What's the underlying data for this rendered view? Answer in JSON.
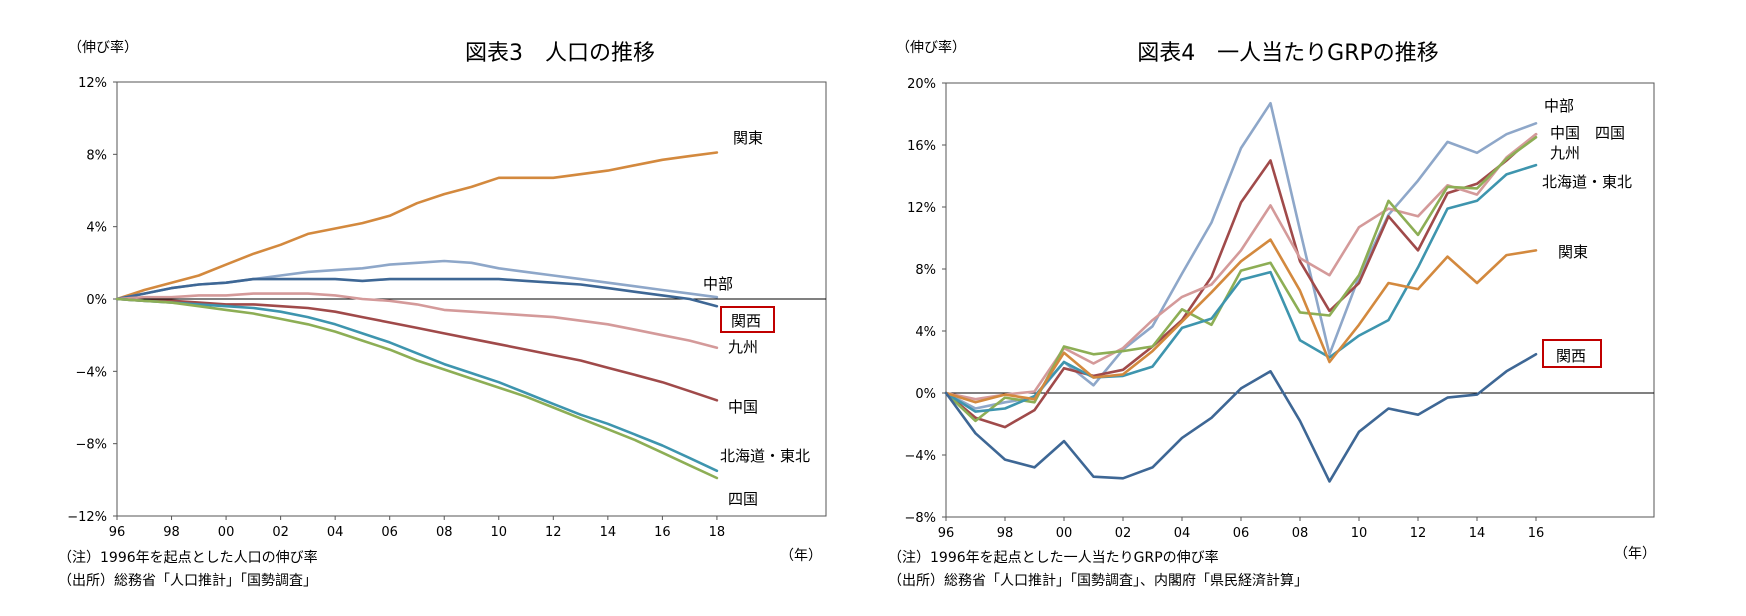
{
  "colors": {
    "kanto": "#D3893E",
    "chubu": "#8EA7C9",
    "kansai": "#3E6795",
    "kyushu": "#D49A9A",
    "chugoku": "#A04A4A",
    "hokkaido_tohoku": "#3E95AE",
    "shikoku": "#8DAE55",
    "kansai_box": "#C00000"
  },
  "chart_data": [
    {
      "type": "line",
      "title": "図表3　人口の推移",
      "ylabel": "（伸び率）",
      "xlabel": "（年）",
      "ylim": [
        -12,
        12
      ],
      "yticks": [
        12,
        8,
        4,
        0,
        -4,
        -8,
        -12
      ],
      "ytick_labels": [
        "12%",
        "8%",
        "4%",
        "0%",
        "−4%",
        "−8%",
        "−12%"
      ],
      "x": [
        96,
        97,
        98,
        99,
        100,
        101,
        102,
        103,
        104,
        105,
        106,
        107,
        108,
        109,
        110,
        111,
        112,
        113,
        114,
        115,
        116,
        117,
        118
      ],
      "xlim": [
        96,
        122
      ],
      "xticks": [
        96,
        98,
        100,
        102,
        104,
        106,
        108,
        110,
        112,
        114,
        116,
        118
      ],
      "xtick_labels": [
        "96",
        "98",
        "00",
        "02",
        "04",
        "06",
        "08",
        "10",
        "12",
        "14",
        "16",
        "18"
      ],
      "series": [
        {
          "name": "関東",
          "color_key": "kanto",
          "values": [
            0,
            0.5,
            0.9,
            1.3,
            1.9,
            2.5,
            3.0,
            3.6,
            3.9,
            4.2,
            4.6,
            5.3,
            5.8,
            6.2,
            6.7,
            6.7,
            6.7,
            6.9,
            7.1,
            7.4,
            7.7,
            7.9,
            8.1
          ]
        },
        {
          "name": "中部",
          "color_key": "chubu",
          "values": [
            0,
            0.3,
            0.6,
            0.8,
            0.9,
            1.1,
            1.3,
            1.5,
            1.6,
            1.7,
            1.9,
            2.0,
            2.1,
            2.0,
            1.7,
            1.5,
            1.3,
            1.1,
            0.9,
            0.7,
            0.5,
            0.3,
            0.1
          ]
        },
        {
          "name": "関西",
          "color_key": "kansai",
          "boxed": true,
          "values": [
            0,
            0.3,
            0.6,
            0.8,
            0.9,
            1.1,
            1.1,
            1.1,
            1.1,
            1.0,
            1.1,
            1.1,
            1.1,
            1.1,
            1.1,
            1.0,
            0.9,
            0.8,
            0.6,
            0.4,
            0.2,
            0.0,
            -0.4
          ]
        },
        {
          "name": "九州",
          "color_key": "kyushu",
          "values": [
            0,
            0.1,
            0.1,
            0.2,
            0.2,
            0.3,
            0.3,
            0.3,
            0.2,
            0.0,
            -0.1,
            -0.3,
            -0.6,
            -0.7,
            -0.8,
            -0.9,
            -1.0,
            -1.2,
            -1.4,
            -1.7,
            -2.0,
            -2.3,
            -2.7
          ]
        },
        {
          "name": "中国",
          "color_key": "chugoku",
          "values": [
            0,
            -0.1,
            -0.1,
            -0.2,
            -0.3,
            -0.3,
            -0.4,
            -0.5,
            -0.7,
            -1.0,
            -1.3,
            -1.6,
            -1.9,
            -2.2,
            -2.5,
            -2.8,
            -3.1,
            -3.4,
            -3.8,
            -4.2,
            -4.6,
            -5.1,
            -5.6
          ]
        },
        {
          "name": "北海道・東北",
          "color_key": "hokkaido_tohoku",
          "values": [
            0,
            -0.1,
            -0.2,
            -0.3,
            -0.4,
            -0.5,
            -0.7,
            -1.0,
            -1.4,
            -1.9,
            -2.4,
            -3.0,
            -3.6,
            -4.1,
            -4.6,
            -5.2,
            -5.8,
            -6.4,
            -6.9,
            -7.5,
            -8.1,
            -8.8,
            -9.5
          ]
        },
        {
          "name": "四国",
          "color_key": "shikoku",
          "values": [
            0,
            -0.1,
            -0.2,
            -0.4,
            -0.6,
            -0.8,
            -1.1,
            -1.4,
            -1.8,
            -2.3,
            -2.8,
            -3.4,
            -3.9,
            -4.4,
            -4.9,
            -5.4,
            -6.0,
            -6.6,
            -7.2,
            -7.8,
            -8.5,
            -9.2,
            -9.9
          ]
        }
      ],
      "notes": [
        "（注）1996年を起点とした人口の伸び率",
        "（出所）総務省「人口推計」「国勢調査」"
      ]
    },
    {
      "type": "line",
      "title": "図表4　一人当たりGRPの推移",
      "ylabel": "（伸び率）",
      "xlabel": "（年）",
      "ylim": [
        -8,
        20
      ],
      "yticks": [
        20,
        16,
        12,
        8,
        4,
        0,
        -4,
        -8
      ],
      "ytick_labels": [
        "20%",
        "16%",
        "12%",
        "8%",
        "4%",
        "0%",
        "−4%",
        "−8%"
      ],
      "x": [
        96,
        97,
        98,
        99,
        100,
        101,
        102,
        103,
        104,
        105,
        106,
        107,
        108,
        109,
        110,
        111,
        112,
        113,
        114,
        115,
        116
      ],
      "xlim": [
        96,
        120
      ],
      "xticks": [
        96,
        98,
        100,
        102,
        104,
        106,
        108,
        110,
        112,
        114,
        116
      ],
      "xtick_labels": [
        "96",
        "98",
        "00",
        "02",
        "04",
        "06",
        "08",
        "10",
        "12",
        "14",
        "16"
      ],
      "series": [
        {
          "name": "中部",
          "color_key": "chubu",
          "values": [
            0,
            -1.0,
            -0.6,
            -0.3,
            2.0,
            0.5,
            2.8,
            4.3,
            7.7,
            11.0,
            15.8,
            18.7,
            10.5,
            2.5,
            7.5,
            11.5,
            13.7,
            16.2,
            15.5,
            16.7,
            17.4
          ]
        },
        {
          "name": "中国",
          "color_key": "chugoku",
          "values": [
            0,
            -1.6,
            -2.2,
            -1.1,
            1.6,
            1.1,
            1.5,
            3.0,
            4.7,
            7.5,
            12.3,
            15.0,
            8.5,
            5.3,
            7.1,
            11.4,
            9.2,
            12.9,
            13.5,
            15.0,
            16.7
          ]
        },
        {
          "name": "四国",
          "color_key": "kyushu",
          "values": [
            0,
            -0.4,
            -0.1,
            0.1,
            2.9,
            1.9,
            2.9,
            4.7,
            6.2,
            7.0,
            9.2,
            12.1,
            8.7,
            7.6,
            10.7,
            11.9,
            11.4,
            13.4,
            12.8,
            15.2,
            16.7
          ]
        },
        {
          "name": "九州",
          "color_key": "shikoku",
          "values": [
            0,
            -1.8,
            -0.3,
            -0.6,
            3.0,
            2.5,
            2.7,
            3.0,
            5.4,
            4.4,
            7.9,
            8.4,
            5.2,
            5.0,
            7.6,
            12.4,
            10.2,
            13.3,
            13.2,
            15.1,
            16.5
          ]
        },
        {
          "name": "北海道・東北",
          "color_key": "hokkaido_tohoku",
          "values": [
            0,
            -1.2,
            -1.0,
            -0.2,
            2.0,
            1.0,
            1.1,
            1.7,
            4.2,
            4.8,
            7.3,
            7.8,
            3.4,
            2.3,
            3.7,
            4.7,
            8.1,
            11.9,
            12.4,
            14.1,
            14.7
          ]
        },
        {
          "name": "関東",
          "color_key": "kanto",
          "values": [
            0,
            -0.6,
            -0.1,
            -0.4,
            2.6,
            1.0,
            1.2,
            2.7,
            4.6,
            6.5,
            8.5,
            9.9,
            6.6,
            2.0,
            4.4,
            7.1,
            6.7,
            8.8,
            7.1,
            8.9,
            9.2
          ]
        },
        {
          "name": "関西",
          "color_key": "kansai",
          "boxed": true,
          "values": [
            0,
            -2.6,
            -4.3,
            -4.8,
            -3.1,
            -5.4,
            -5.5,
            -4.8,
            -2.9,
            -1.6,
            0.3,
            1.4,
            -1.8,
            -5.7,
            -2.5,
            -1.0,
            -1.4,
            -0.3,
            -0.1,
            1.4,
            2.5
          ]
        }
      ],
      "labels": {
        "chugoku_shikoku": "中国　四国"
      },
      "notes": [
        "（注）1996年を起点とした一人当たりGRPの伸び率",
        "（出所）総務省「人口推計」「国勢調査」、内閣府「県民経済計算」"
      ]
    }
  ]
}
